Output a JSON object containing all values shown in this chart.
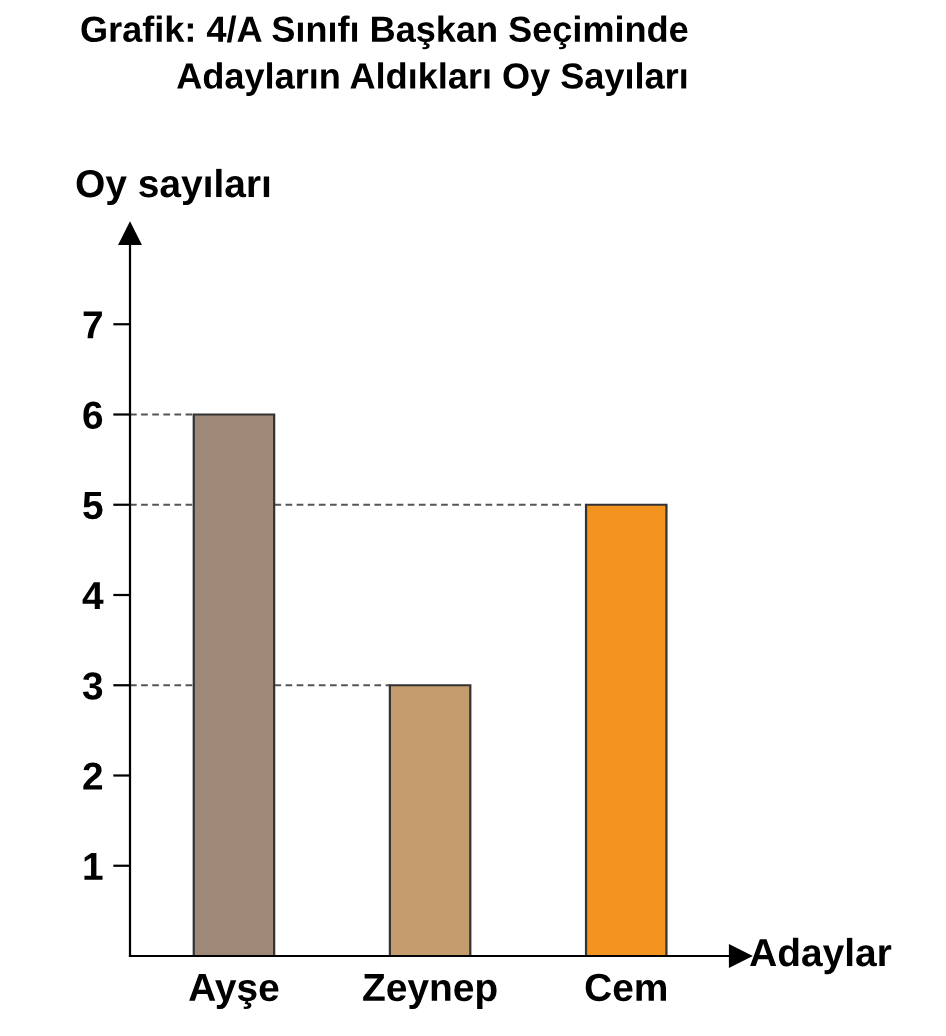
{
  "chart_data": {
    "type": "bar",
    "title": "Grafik: 4/A Sınıfı Başkan Seçiminde\nAdayların Aldıkları Oy Sayıları",
    "xlabel": "Adaylar",
    "ylabel": "Oy sayıları",
    "categories": [
      "Ayşe",
      "Zeynep",
      "Cem"
    ],
    "values": [
      6,
      3,
      5
    ],
    "colors": [
      "#9e8878",
      "#c49c6e",
      "#f39420"
    ],
    "ylim": [
      0,
      8
    ],
    "yticks": [
      1,
      2,
      3,
      4,
      5,
      6,
      7
    ],
    "ref_lines": [
      {
        "axis": "y",
        "value": 6,
        "line_style": "dashed",
        "color": "#555555"
      },
      {
        "axis": "y",
        "value": 3,
        "line_style": "dashed",
        "color": "#555555"
      },
      {
        "axis": "y",
        "value": 5,
        "line_style": "dashed",
        "color": "#555555"
      }
    ],
    "grid": false,
    "legend": false
  }
}
